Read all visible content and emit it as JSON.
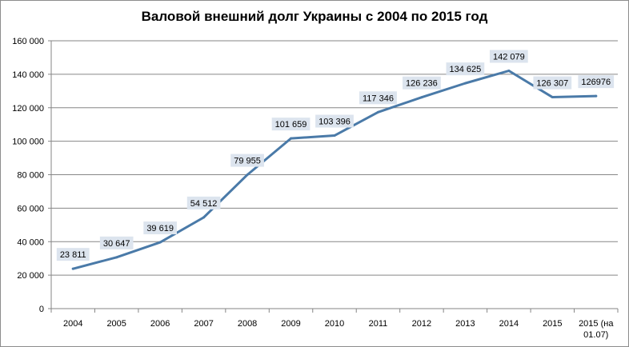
{
  "chart_data": {
    "type": "line",
    "title": "Валовой внешний долг Украины с 2004 по 2015 год",
    "categories": [
      "2004",
      "2005",
      "2006",
      "2007",
      "2008",
      "2009",
      "2010",
      "2011",
      "2012",
      "2013",
      "2014",
      "2015",
      "2015 (на 01.07)"
    ],
    "category_lines": [
      [
        "2004"
      ],
      [
        "2005"
      ],
      [
        "2006"
      ],
      [
        "2007"
      ],
      [
        "2008"
      ],
      [
        "2009"
      ],
      [
        "2010"
      ],
      [
        "2011"
      ],
      [
        "2012"
      ],
      [
        "2013"
      ],
      [
        "2014"
      ],
      [
        "2015"
      ],
      [
        "2015 (на",
        "01.07)"
      ]
    ],
    "values": [
      23811,
      30647,
      39619,
      54512,
      79955,
      101659,
      103396,
      117346,
      126236,
      134625,
      142079,
      126307,
      126976
    ],
    "data_labels": [
      "23 811",
      "30 647",
      "39 619",
      "54 512",
      "79 955",
      "101 659",
      "103 396",
      "117 346",
      "126 236",
      "134 625",
      "142 079",
      "126 307",
      "126976"
    ],
    "ylim": [
      0,
      160000
    ],
    "ytick_values": [
      0,
      20000,
      40000,
      60000,
      80000,
      100000,
      120000,
      140000,
      160000
    ],
    "ytick_labels": [
      "0",
      "20 000",
      "40 000",
      "60 000",
      "80 000",
      "100 000",
      "120 000",
      "140 000",
      "160 000"
    ],
    "xlabel": "",
    "ylabel": "",
    "grid": true,
    "legend": "none",
    "colors": {
      "line": "#4a7aa8",
      "grid": "#868686",
      "label_bg": "#dce4ee"
    }
  }
}
